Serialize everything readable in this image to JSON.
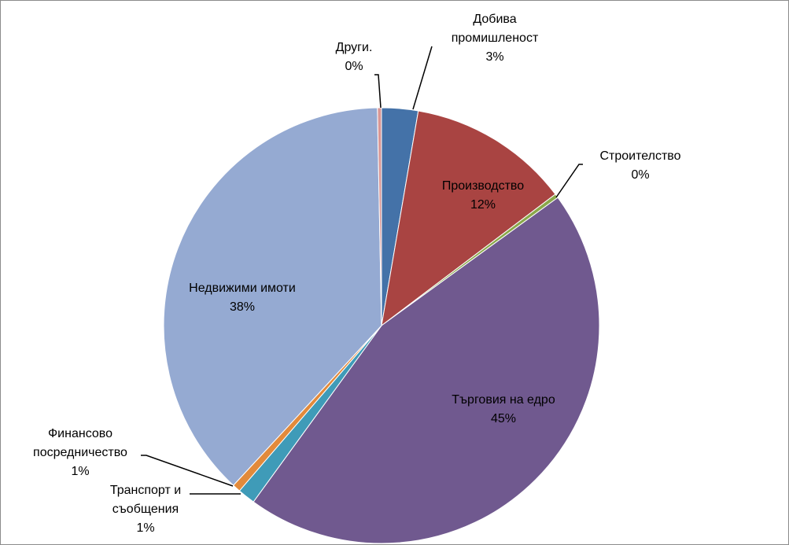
{
  "chart_data": {
    "type": "pie",
    "start_at": "top",
    "direction": "clockwise",
    "slices": [
      {
        "name": "Добива промишленост",
        "lines": [
          "Добива",
          "промишленост"
        ],
        "value": 2.7,
        "label": "3%",
        "color": "#4472a8"
      },
      {
        "name": "Производство",
        "lines": [
          "Производство"
        ],
        "value": 12.0,
        "label": "12%",
        "color": "#a94442"
      },
      {
        "name": "Строителство",
        "lines": [
          "Строителство"
        ],
        "value": 0.3,
        "label": "0%",
        "color": "#8aa84a"
      },
      {
        "name": "Търговия на едро",
        "lines": [
          "Търговия на едро"
        ],
        "value": 45.0,
        "label": "45%",
        "color": "#70598f"
      },
      {
        "name": "Транспорт и съобщения",
        "lines": [
          "Транспорт и",
          "съобщения"
        ],
        "value": 1.3,
        "label": "1%",
        "color": "#3f9bb8"
      },
      {
        "name": "Финансово посредничество",
        "lines": [
          "Финансово",
          "посредничество"
        ],
        "value": 0.6,
        "label": "1%",
        "color": "#e28a3b"
      },
      {
        "name": "Недвижими имоти",
        "lines": [
          "Недвижими имоти"
        ],
        "value": 37.8,
        "label": "38%",
        "color": "#95aad2"
      },
      {
        "name": "Други.",
        "lines": [
          "Други."
        ],
        "value": 0.3,
        "label": "0%",
        "color": "#d99795"
      }
    ]
  }
}
